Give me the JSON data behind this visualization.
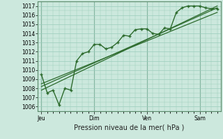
{
  "xlabel": "Pression niveau de la mer( hPa )",
  "bg_color": "#cce8dd",
  "grid_color": "#99ccbb",
  "line_color": "#2d6b2d",
  "vline_color": "#5a8a6a",
  "ylim": [
    1005.5,
    1017.5
  ],
  "yticks": [
    1006,
    1007,
    1008,
    1009,
    1010,
    1011,
    1012,
    1013,
    1014,
    1015,
    1016,
    1017
  ],
  "day_labels": [
    "Jeu",
    "Dim",
    "Ven",
    "Sam"
  ],
  "day_positions": [
    0.0,
    0.3,
    0.6,
    0.9
  ],
  "xlim": [
    -0.02,
    1.02
  ],
  "main_x": [
    0.0,
    0.033,
    0.066,
    0.1,
    0.133,
    0.167,
    0.2,
    0.233,
    0.267,
    0.3,
    0.333,
    0.367,
    0.4,
    0.433,
    0.467,
    0.5,
    0.533,
    0.567,
    0.6,
    0.633,
    0.667,
    0.7,
    0.733,
    0.767,
    0.8,
    0.833,
    0.867,
    0.9,
    0.933,
    0.967,
    1.0
  ],
  "main_y": [
    1009.5,
    1007.5,
    1007.8,
    1006.2,
    1008.0,
    1007.8,
    1011.0,
    1011.8,
    1012.0,
    1012.8,
    1012.8,
    1012.3,
    1012.5,
    1013.0,
    1013.8,
    1013.7,
    1014.4,
    1014.5,
    1014.5,
    1014.0,
    1013.9,
    1014.6,
    1014.5,
    1016.3,
    1016.8,
    1017.0,
    1017.0,
    1017.0,
    1016.8,
    1016.7,
    1016.7
  ],
  "trend1_x": [
    0.0,
    1.0
  ],
  "trend1_y": [
    1008.2,
    1016.8
  ],
  "trend2_x": [
    0.0,
    1.0
  ],
  "trend2_y": [
    1007.8,
    1017.0
  ],
  "trend3_x": [
    0.0,
    1.0
  ],
  "trend3_y": [
    1008.5,
    1016.3
  ],
  "xlabel_fontsize": 7.0,
  "tick_fontsize": 5.5
}
